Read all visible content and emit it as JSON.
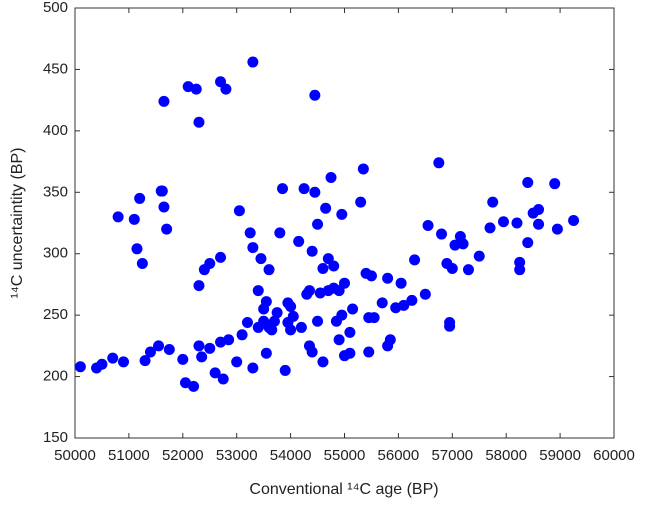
{
  "chart_data": {
    "type": "scatter",
    "xlabel": "Conventional ¹⁴C age (BP)",
    "ylabel": "¹⁴C uncertaintity (BP)",
    "color": "#0000ff",
    "xlim": [
      50000,
      60000
    ],
    "xticks": [
      50000,
      51000,
      52000,
      53000,
      54000,
      55000,
      56000,
      57000,
      58000,
      59000,
      60000
    ],
    "ylim": [
      150,
      500
    ],
    "yticks": [
      150,
      200,
      250,
      300,
      350,
      400,
      450,
      500
    ],
    "x": [
      50100,
      50400,
      50500,
      50700,
      50900,
      50800,
      51100,
      51150,
      51200,
      51250,
      51300,
      51400,
      51550,
      51600,
      51620,
      51650,
      51700,
      51650,
      51750,
      52000,
      52050,
      52100,
      52200,
      52250,
      52300,
      52300,
      52350,
      52300,
      52400,
      52500,
      52500,
      52600,
      52700,
      52700,
      52700,
      52750,
      52800,
      52850,
      53000,
      53050,
      53100,
      53200,
      53300,
      53250,
      53300,
      53300,
      53400,
      53400,
      53450,
      53500,
      53500,
      53550,
      53550,
      53600,
      53600,
      53650,
      53700,
      53750,
      53800,
      53850,
      53900,
      53950,
      53950,
      54000,
      54000,
      54050,
      54150,
      54200,
      54250,
      54300,
      54350,
      54350,
      54400,
      54400,
      54450,
      54450,
      54500,
      54500,
      54550,
      54600,
      54600,
      54650,
      54700,
      54700,
      54750,
      54800,
      54800,
      54850,
      54900,
      54900,
      54950,
      54950,
      55000,
      55000,
      55100,
      55150,
      55100,
      55300,
      55350,
      55400,
      55450,
      55450,
      55500,
      55550,
      55700,
      55800,
      55800,
      55850,
      55950,
      56050,
      56100,
      56250,
      56300,
      56500,
      56550,
      56750,
      56800,
      56900,
      56950,
      56950,
      57000,
      57050,
      57150,
      57200,
      57300,
      57500,
      57700,
      57750,
      57950,
      58200,
      58250,
      58250,
      58400,
      58400,
      58500,
      58600,
      58600,
      58900,
      58950,
      59250
    ],
    "values": [
      208,
      207,
      210,
      215,
      212,
      330,
      328,
      304,
      345,
      292,
      213,
      220,
      225,
      351,
      351,
      338,
      320,
      424,
      222,
      214,
      195,
      436,
      192,
      434,
      407,
      225,
      216,
      274,
      287,
      292,
      223,
      203,
      228,
      297,
      440,
      198,
      434,
      230,
      212,
      335,
      234,
      244,
      456,
      317,
      305,
      207,
      240,
      270,
      296,
      255,
      245,
      261,
      219,
      287,
      240,
      238,
      245,
      252,
      317,
      353,
      205,
      244,
      260,
      257,
      238,
      249,
      310,
      240,
      353,
      267,
      270,
      225,
      220,
      302,
      429,
      350,
      245,
      324,
      268,
      212,
      288,
      337,
      296,
      270,
      362,
      272,
      290,
      245,
      230,
      270,
      332,
      250,
      276,
      217,
      236,
      255,
      219,
      342,
      369,
      284,
      248,
      220,
      282,
      248,
      260,
      280,
      225,
      230,
      256,
      276,
      258,
      262,
      295,
      267,
      323,
      374,
      316,
      292,
      244,
      241,
      288,
      307,
      314,
      308,
      287,
      298,
      321,
      342,
      326,
      325,
      287,
      293,
      358,
      309,
      333,
      336,
      324,
      357,
      320,
      327
    ]
  }
}
